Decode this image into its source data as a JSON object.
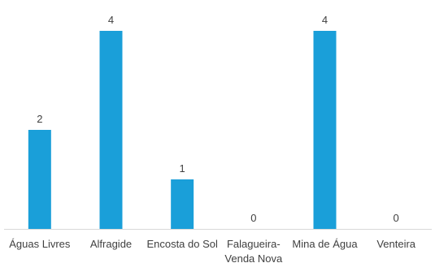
{
  "chart_data": {
    "type": "bar",
    "categories": [
      [
        "Águas Livres"
      ],
      [
        "Alfragide"
      ],
      [
        "Encosta do Sol"
      ],
      [
        "Falagueira-",
        "Venda Nova"
      ],
      [
        "Mina de Água"
      ],
      [
        "Venteira"
      ]
    ],
    "values": [
      2,
      4,
      1,
      0,
      4,
      0
    ],
    "ylim": [
      0,
      4
    ],
    "bar_color": "#1a9fd9",
    "axis_color": "#d9d9d9",
    "grid": false,
    "legend": "none",
    "title": "",
    "xlabel": "",
    "ylabel": ""
  }
}
